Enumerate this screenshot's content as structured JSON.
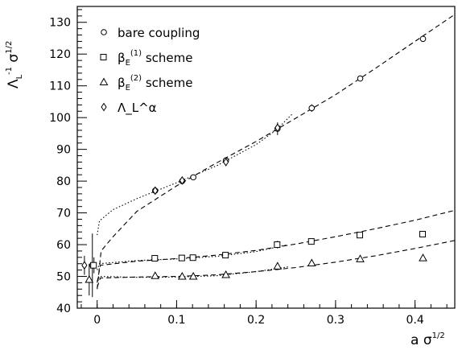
{
  "chart_data": {
    "type": "scatter",
    "title": "",
    "xlabel": "a σ^{1/2}",
    "ylabel": "Λ_L^{-1} σ^{1/2}",
    "xlim": [
      -0.025,
      0.45
    ],
    "ylim": [
      40,
      135
    ],
    "xticks": [
      0,
      0.1,
      0.2,
      0.3,
      0.4
    ],
    "xtick_labels": [
      "0",
      "0.1",
      "0.2",
      "0.3",
      "0.4"
    ],
    "yticks": [
      40,
      50,
      60,
      70,
      80,
      90,
      100,
      110,
      120,
      130
    ],
    "ytick_labels": [
      "40",
      "50",
      "60",
      "70",
      "80",
      "90",
      "100",
      "110",
      "120",
      "130"
    ],
    "legend_position": "top-left",
    "grid": false,
    "legend": [
      {
        "marker": "circle",
        "text": "bare coupling"
      },
      {
        "marker": "square",
        "text": "β_E^{(1)} scheme"
      },
      {
        "marker": "triangle",
        "text": "β_E^{(2)} scheme"
      },
      {
        "marker": "diamond",
        "text": "Λ_L^α"
      }
    ],
    "series": [
      {
        "marker": "circle",
        "points": [
          {
            "x": 0.073,
            "y": 77.0
          },
          {
            "x": 0.107,
            "y": 80.0
          },
          {
            "x": 0.121,
            "y": 81.2
          },
          {
            "x": 0.162,
            "y": 86.5
          },
          {
            "x": 0.227,
            "y": 96.5
          },
          {
            "x": 0.27,
            "y": 103.0
          },
          {
            "x": 0.331,
            "y": 112.3
          },
          {
            "x": 0.41,
            "y": 124.8
          },
          {
            "x": -0.006,
            "y": 53.5
          }
        ]
      },
      {
        "marker": "square",
        "points": [
          {
            "x": 0.073,
            "y": 55.7
          },
          {
            "x": 0.107,
            "y": 55.8
          },
          {
            "x": 0.121,
            "y": 55.9
          },
          {
            "x": 0.162,
            "y": 56.7
          },
          {
            "x": 0.227,
            "y": 60.0
          },
          {
            "x": 0.27,
            "y": 61.0
          },
          {
            "x": 0.331,
            "y": 63.0
          },
          {
            "x": 0.41,
            "y": 63.3
          },
          {
            "x": -0.004,
            "y": 53.5
          }
        ]
      },
      {
        "marker": "triangle",
        "points": [
          {
            "x": 0.073,
            "y": 50.2
          },
          {
            "x": 0.107,
            "y": 50.0
          },
          {
            "x": 0.121,
            "y": 50.0
          },
          {
            "x": 0.162,
            "y": 50.5
          },
          {
            "x": 0.227,
            "y": 53.2
          },
          {
            "x": 0.27,
            "y": 54.2
          },
          {
            "x": 0.331,
            "y": 55.5
          },
          {
            "x": 0.41,
            "y": 55.8
          },
          {
            "x": -0.01,
            "y": 49.0
          }
        ]
      },
      {
        "marker": "diamond",
        "points": [
          {
            "x": 0.073,
            "y": 77.0
          },
          {
            "x": 0.107,
            "y": 80.2
          },
          {
            "x": 0.162,
            "y": 86.0
          },
          {
            "x": 0.227,
            "y": 96.8
          },
          {
            "x": -0.016,
            "y": 53.5
          }
        ]
      }
    ],
    "fits": [
      {
        "style": "dashed",
        "points": [
          [
            0.0,
            46
          ],
          [
            0.005,
            58
          ],
          [
            0.02,
            62.5
          ],
          [
            0.05,
            70.5
          ],
          [
            0.1,
            78.5
          ],
          [
            0.15,
            85.7
          ],
          [
            0.2,
            92.5
          ],
          [
            0.25,
            99.8
          ],
          [
            0.3,
            107.2
          ],
          [
            0.35,
            115.5
          ],
          [
            0.4,
            124.0
          ],
          [
            0.45,
            132.5
          ]
        ]
      },
      {
        "style": "dotted",
        "points": [
          [
            0.0,
            63
          ],
          [
            0.003,
            67.5
          ],
          [
            0.02,
            71
          ],
          [
            0.05,
            74.5
          ],
          [
            0.1,
            79.5
          ],
          [
            0.15,
            84.8
          ],
          [
            0.2,
            91.5
          ],
          [
            0.225,
            96
          ],
          [
            0.245,
            101
          ]
        ]
      },
      {
        "style": "dashed",
        "points": [
          [
            0.0,
            48
          ],
          [
            0.004,
            53.5
          ],
          [
            0.05,
            54.8
          ],
          [
            0.1,
            55.6
          ],
          [
            0.15,
            56.7
          ],
          [
            0.2,
            58.2
          ],
          [
            0.25,
            60.2
          ],
          [
            0.3,
            62.5
          ],
          [
            0.35,
            65.0
          ],
          [
            0.4,
            67.7
          ],
          [
            0.45,
            70.8
          ]
        ]
      },
      {
        "style": "dotted",
        "points": [
          [
            0.0,
            52
          ],
          [
            0.003,
            54
          ],
          [
            0.05,
            55.0
          ],
          [
            0.1,
            55.5
          ],
          [
            0.15,
            56.3
          ],
          [
            0.2,
            57.8
          ],
          [
            0.24,
            60.0
          ]
        ]
      },
      {
        "style": "dashed",
        "points": [
          [
            0.0,
            46.5
          ],
          [
            0.004,
            49.5
          ],
          [
            0.05,
            49.8
          ],
          [
            0.1,
            50.0
          ],
          [
            0.15,
            50.5
          ],
          [
            0.2,
            51.5
          ],
          [
            0.25,
            52.8
          ],
          [
            0.3,
            54.5
          ],
          [
            0.35,
            56.5
          ],
          [
            0.4,
            58.8
          ],
          [
            0.45,
            61.3
          ]
        ]
      },
      {
        "style": "dotted",
        "points": [
          [
            0.0,
            48.5
          ],
          [
            0.003,
            50.0
          ],
          [
            0.05,
            49.7
          ],
          [
            0.1,
            49.8
          ],
          [
            0.15,
            50.2
          ],
          [
            0.2,
            51.5
          ],
          [
            0.24,
            53.0
          ]
        ]
      }
    ],
    "error_bars": [
      {
        "x": 0.227,
        "y": 96.5,
        "err": 2.0
      },
      {
        "x": 0.162,
        "y": 86.5,
        "err": 1.0
      },
      {
        "x": 0.227,
        "y": 60.0,
        "err": 1.2
      },
      {
        "x": 0.227,
        "y": 53.2,
        "err": 1.2
      },
      {
        "x": 0.27,
        "y": 103.0,
        "err": 1.2
      },
      {
        "x": -0.016,
        "y": 53.5,
        "err": 3.0
      },
      {
        "x": -0.01,
        "y": 49.0,
        "err": 5.0
      },
      {
        "x": -0.004,
        "y": 53.5,
        "err": 2.5
      },
      {
        "x": -0.006,
        "y": 53.5,
        "err": 10.0
      }
    ]
  }
}
